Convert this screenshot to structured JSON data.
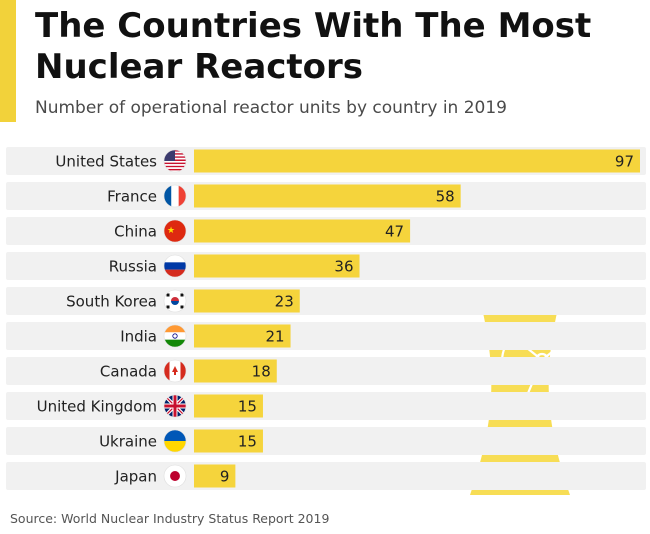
{
  "header": {
    "title": "The Countries With The Most Nuclear Reactors",
    "subtitle": "Number of operational reactor units by country in 2019"
  },
  "footer": {
    "source": "Source: World Nuclear Industry Status Report 2019"
  },
  "colors": {
    "accent": "#f2d23a",
    "bar": "#f5d43c",
    "band": "#f1f1f1",
    "decoration": "#f7dd55"
  },
  "chart_data": {
    "type": "bar",
    "orientation": "horizontal",
    "title": "The Countries With The Most Nuclear Reactors",
    "subtitle": "Number of operational reactor units by country in 2019",
    "categories": [
      "United States",
      "France",
      "China",
      "Russia",
      "South Korea",
      "India",
      "Canada",
      "United Kingdom",
      "Ukraine",
      "Japan"
    ],
    "values": [
      97,
      58,
      47,
      36,
      23,
      21,
      18,
      15,
      15,
      9
    ],
    "flag_icons": [
      "us-flag-icon",
      "france-flag-icon",
      "china-flag-icon",
      "russia-flag-icon",
      "south-korea-flag-icon",
      "india-flag-icon",
      "canada-flag-icon",
      "uk-flag-icon",
      "ukraine-flag-icon",
      "japan-flag-icon"
    ],
    "xlim": [
      0,
      97
    ],
    "value_labels": true,
    "grid": false,
    "legend": "none"
  }
}
